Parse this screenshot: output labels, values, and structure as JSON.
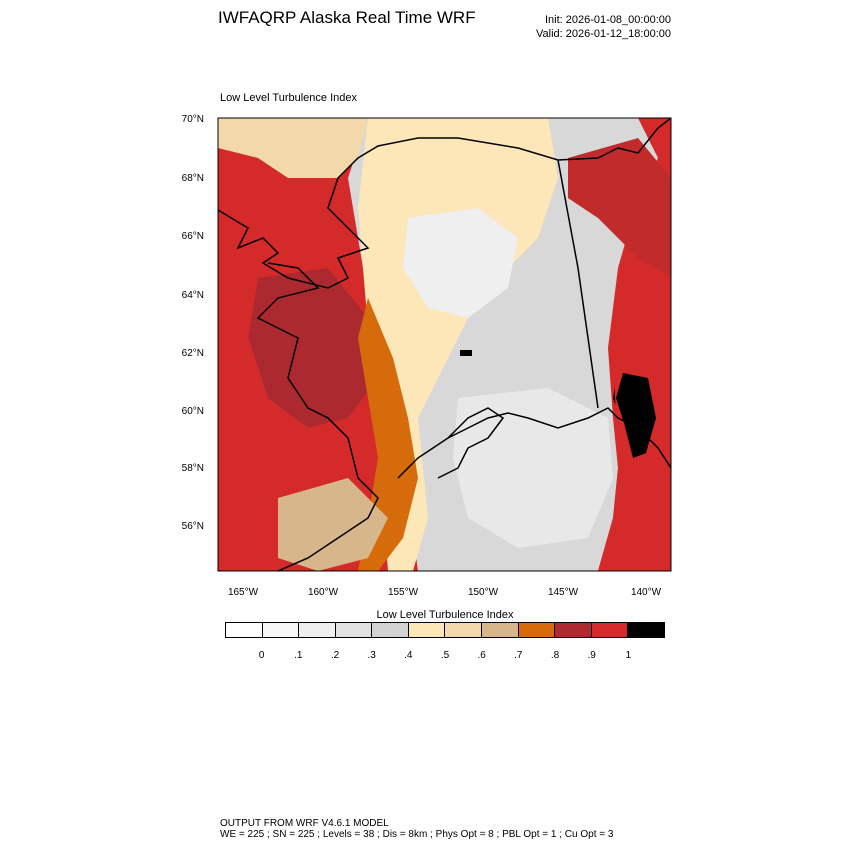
{
  "header": {
    "title": "IWFAQRP Alaska Real Time WRF",
    "init": "Init: 2026-01-08_00:00:00",
    "valid": "Valid: 2026-01-12_18:00:00"
  },
  "plot": {
    "field_title": "Low Level Turbulence Index",
    "lat_labels": [
      "70°N",
      "68°N",
      "66°N",
      "64°N",
      "62°N",
      "60°N",
      "58°N",
      "56°N"
    ],
    "lon_labels": [
      "165°W",
      "160°W",
      "155°W",
      "150°W",
      "145°W",
      "140°W"
    ]
  },
  "colorbar": {
    "title": "Low Level Turbulence Index",
    "labels": [
      "0",
      ".1",
      ".2",
      ".3",
      ".4",
      ".5",
      ".6",
      ".7",
      ".8",
      ".9",
      "1"
    ],
    "colors": [
      "#ffffff",
      "#f7f7f7",
      "#efefef",
      "#e1e1e1",
      "#d2d2d2",
      "#fde6b8",
      "#f2d8aa",
      "#d6b68a",
      "#d66b0b",
      "#ac2a2f",
      "#d42a2a",
      "#000000"
    ]
  },
  "footer": {
    "line1": "OUTPUT FROM WRF V4.6.1 MODEL",
    "line2": "WE = 225 ; SN = 225 ; Levels = 38 ; Dis = 8km ; Phys Opt = 8 ; PBL Opt = 1 ; Cu Opt = 3"
  }
}
